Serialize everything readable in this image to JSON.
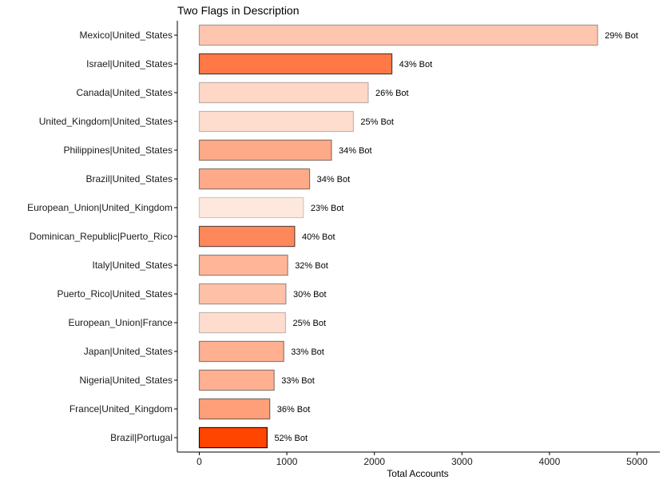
{
  "chart_data": {
    "type": "bar",
    "orientation": "horizontal",
    "title": "Two Flags in Description",
    "xlabel": "Total Accounts",
    "ylabel": "",
    "xlim": [
      0,
      5100
    ],
    "xticks": [
      0,
      1000,
      2000,
      3000,
      4000,
      5000
    ],
    "grid": false,
    "legend": "none",
    "label_suffix": "% Bot",
    "categories": [
      "Mexico|United_States",
      "Israel|United_States",
      "Canada|United_States",
      "United_Kingdom|United_States",
      "Philippines|United_States",
      "Brazil|United_States",
      "European_Union|United_Kingdom",
      "Dominican_Republic|Puerto_Rico",
      "Italy|United_States",
      "Puerto_Rico|United_States",
      "European_Union|France",
      "Japan|United_States",
      "Nigeria|United_States",
      "France|United_Kingdom",
      "Brazil|Portugal"
    ],
    "values": [
      4550,
      2200,
      1930,
      1760,
      1510,
      1260,
      1190,
      1090,
      1010,
      990,
      985,
      965,
      855,
      805,
      775
    ],
    "bot_percent": [
      29,
      43,
      26,
      25,
      34,
      34,
      23,
      40,
      32,
      30,
      25,
      33,
      33,
      36,
      52
    ],
    "colors": {
      "fill_low": "#fee8dd",
      "fill_high": "#ff4500",
      "bot_min": 23,
      "bot_max": 52
    }
  }
}
